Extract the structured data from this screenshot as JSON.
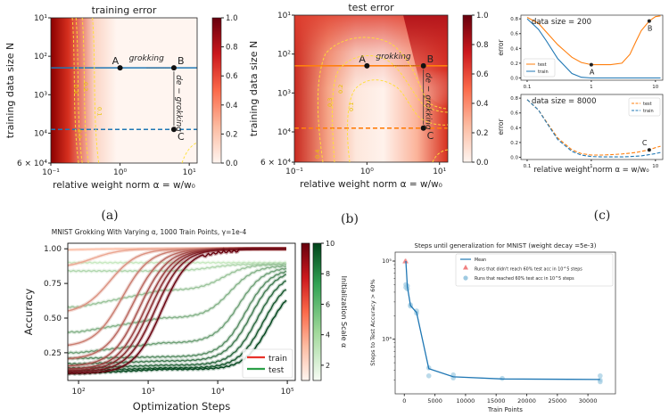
{
  "figure": {
    "panel_labels": [
      "(a)",
      "(b)",
      "(c)"
    ]
  },
  "chart_data": [
    {
      "id": "a",
      "type": "heatmap",
      "title": "training error",
      "xlabel": "relative weight norm α = w/w₀",
      "ylabel": "training data size N",
      "xscale": "log",
      "yscale": "log",
      "xlim": [
        0.1,
        13
      ],
      "ylim": [
        60000,
        10
      ],
      "xticks": [
        {
          "v": 0.1,
          "label": "10⁻¹"
        },
        {
          "v": 1,
          "label": "10⁰"
        },
        {
          "v": 10,
          "label": "10¹"
        }
      ],
      "yticks": [
        {
          "v": 10,
          "label": "10¹"
        },
        {
          "v": 100,
          "label": "10²"
        },
        {
          "v": 1000,
          "label": "10³"
        },
        {
          "v": 10000,
          "label": "10⁴"
        },
        {
          "v": 60000,
          "label": "6 × 10⁴"
        }
      ],
      "colorbar": {
        "min": 0.0,
        "max": 1.0,
        "ticks": [
          "0.0",
          "0.2",
          "0.4",
          "0.6",
          "0.8",
          "1.0"
        ],
        "cmap": "Reds"
      },
      "contour_labels": [
        "0.4",
        "0.3",
        "0.2",
        "0.1",
        "0.1"
      ],
      "lines": [
        {
          "N": 200,
          "style": "solid",
          "color": "#1f77b4"
        },
        {
          "N": 8000,
          "style": "dashed",
          "color": "#1f77b4"
        }
      ],
      "points": [
        {
          "label": "A",
          "alpha": 1.0,
          "N": 200
        },
        {
          "label": "B",
          "alpha": 6,
          "N": 200
        },
        {
          "label": "C",
          "alpha": 6,
          "N": 8000
        }
      ],
      "annotations": [
        "grokking",
        "de − grokking"
      ]
    },
    {
      "id": "b",
      "type": "heatmap",
      "title": "test error",
      "xlabel": "relative weight norm α = w/w₀",
      "ylabel": "training data size N",
      "xscale": "log",
      "yscale": "log",
      "xlim": [
        0.1,
        13
      ],
      "ylim": [
        60000,
        10
      ],
      "xticks": [
        {
          "v": 0.1,
          "label": "10⁻¹"
        },
        {
          "v": 1,
          "label": "10⁰"
        },
        {
          "v": 10,
          "label": "10¹"
        }
      ],
      "yticks": [
        {
          "v": 10,
          "label": "10¹"
        },
        {
          "v": 100,
          "label": "10²"
        },
        {
          "v": 1000,
          "label": "10³"
        },
        {
          "v": 10000,
          "label": "10⁴"
        },
        {
          "v": 60000,
          "label": "6 × 10⁴"
        }
      ],
      "colorbar": {
        "min": 0.0,
        "max": 1.0,
        "ticks": [
          "0.0",
          "0.2",
          "0.4",
          "0.6",
          "0.8",
          "1.0"
        ],
        "cmap": "Reds"
      },
      "contour_labels": [
        "0.4",
        "0.3",
        "0.2",
        "0.1"
      ],
      "lines": [
        {
          "N": 200,
          "style": "solid",
          "color": "#ff7f0e"
        },
        {
          "N": 8000,
          "style": "dashed",
          "color": "#ff7f0e"
        }
      ],
      "points": [
        {
          "label": "A",
          "alpha": 1.0,
          "N": 200
        },
        {
          "label": "B",
          "alpha": 6,
          "N": 200
        },
        {
          "label": "C",
          "alpha": 6,
          "N": 8000
        }
      ],
      "annotations": [
        "grokking",
        "de − grokking"
      ]
    },
    {
      "id": "c-top",
      "type": "line",
      "title": "data size = 200",
      "xlabel": "",
      "ylabel": "error",
      "xscale": "log",
      "xlim": [
        0.08,
        13
      ],
      "ylim": [
        -0.03,
        0.85
      ],
      "xticks": [
        "0.1",
        "1",
        "10"
      ],
      "yticks": [
        "0.0",
        "0.2",
        "0.4",
        "0.6",
        "0.8"
      ],
      "legend": "lower-left",
      "x": [
        0.1,
        0.15,
        0.2,
        0.3,
        0.5,
        0.7,
        1,
        1.5,
        2,
        3,
        4,
        5,
        6,
        8,
        10,
        12
      ],
      "series": [
        {
          "name": "test",
          "color": "#ff7f0e",
          "style": "solid",
          "values": [
            0.82,
            0.74,
            0.62,
            0.45,
            0.28,
            0.21,
            0.18,
            0.18,
            0.18,
            0.2,
            0.32,
            0.5,
            0.64,
            0.77,
            0.83,
            0.84
          ]
        },
        {
          "name": "train",
          "color": "#1f77b4",
          "style": "solid",
          "values": [
            0.8,
            0.66,
            0.5,
            0.26,
            0.06,
            0.01,
            0.0,
            0.0,
            0.0,
            0.0,
            0.0,
            0.0,
            0.0,
            0.0,
            0.0,
            0.0
          ]
        }
      ],
      "points": [
        {
          "label": "A",
          "x": 1,
          "y": 0.18
        },
        {
          "label": "B",
          "x": 8,
          "y": 0.77
        }
      ]
    },
    {
      "id": "c-bottom",
      "type": "line",
      "title": "data size = 8000",
      "xlabel": "relative weight norm α = w/w₀",
      "ylabel": "error",
      "xscale": "log",
      "xlim": [
        0.08,
        13
      ],
      "ylim": [
        -0.03,
        0.85
      ],
      "xticks": [
        "0.1",
        "1",
        "10"
      ],
      "yticks": [
        "0.0",
        "0.2",
        "0.4",
        "0.6",
        "0.8"
      ],
      "legend": "top-right",
      "x": [
        0.1,
        0.15,
        0.2,
        0.3,
        0.5,
        0.7,
        1,
        1.5,
        2,
        3,
        4,
        5,
        6,
        8,
        10,
        12
      ],
      "series": [
        {
          "name": "test",
          "color": "#ff7f0e",
          "style": "dashed",
          "values": [
            0.78,
            0.64,
            0.48,
            0.26,
            0.1,
            0.05,
            0.03,
            0.03,
            0.035,
            0.045,
            0.055,
            0.065,
            0.08,
            0.1,
            0.13,
            0.15
          ]
        },
        {
          "name": "train",
          "color": "#1f77b4",
          "style": "dashed",
          "values": [
            0.78,
            0.64,
            0.47,
            0.24,
            0.08,
            0.03,
            0.01,
            0.005,
            0.005,
            0.005,
            0.01,
            0.015,
            0.02,
            0.035,
            0.05,
            0.065
          ]
        }
      ],
      "points": [
        {
          "label": "C",
          "x": 8,
          "y": 0.1
        }
      ]
    },
    {
      "id": "d",
      "type": "line",
      "title": "MNIST Grokking With Varying α, 1000 Train Points, γ=1e-4",
      "xlabel": "Optimization Steps",
      "ylabel": "Accuracy",
      "xscale": "log",
      "xlim": [
        70,
        130000
      ],
      "ylim": [
        0.05,
        1.04
      ],
      "xticks": [
        {
          "v": 100,
          "label": "10²"
        },
        {
          "v": 1000,
          "label": "10³"
        },
        {
          "v": 10000,
          "label": "10⁴"
        },
        {
          "v": 100000,
          "label": "10⁵"
        }
      ],
      "yticks": [
        "0.25",
        "0.50",
        "0.75",
        "1.00"
      ],
      "legend": "lower-right",
      "legend_entries": [
        {
          "name": "train",
          "color": "#e8322a"
        },
        {
          "name": "test",
          "color": "#2ca048"
        }
      ],
      "colorbar_label": "Initialization Scale α",
      "colorbar_ticks": [
        "2",
        "4",
        "6",
        "8",
        "10"
      ],
      "alpha_values": [
        1,
        2,
        3,
        4,
        5,
        6,
        7,
        8,
        9,
        10
      ],
      "train_series": [
        {
          "alpha": 1,
          "start": 0.99,
          "mid_step": 110
        },
        {
          "alpha": 2,
          "start": 0.86,
          "mid_step": 160
        },
        {
          "alpha": 3,
          "start": 0.53,
          "mid_step": 280
        },
        {
          "alpha": 4,
          "start": 0.29,
          "mid_step": 420
        },
        {
          "alpha": 5,
          "start": 0.2,
          "mid_step": 600
        },
        {
          "alpha": 6,
          "start": 0.15,
          "mid_step": 750
        },
        {
          "alpha": 7,
          "start": 0.13,
          "mid_step": 900
        },
        {
          "alpha": 8,
          "start": 0.12,
          "mid_step": 1050
        },
        {
          "alpha": 9,
          "start": 0.11,
          "mid_step": 1250
        },
        {
          "alpha": 10,
          "start": 0.1,
          "mid_step": 1550
        }
      ],
      "test_series": [
        {
          "alpha": 1,
          "start": 0.9,
          "plateau": 0.9,
          "final": 0.9,
          "mid_step": 1000
        },
        {
          "alpha": 2,
          "start": 0.84,
          "plateau": 0.84,
          "final": 0.89,
          "mid_step": 8000
        },
        {
          "alpha": 3,
          "start": 0.58,
          "plateau": 0.7,
          "final": 0.89,
          "mid_step": 12000
        },
        {
          "alpha": 4,
          "start": 0.4,
          "plateau": 0.5,
          "final": 0.88,
          "mid_step": 15000
        },
        {
          "alpha": 5,
          "start": 0.25,
          "plateau": 0.32,
          "final": 0.87,
          "mid_step": 20000
        },
        {
          "alpha": 6,
          "start": 0.21,
          "plateau": 0.22,
          "final": 0.86,
          "mid_step": 25000
        },
        {
          "alpha": 7,
          "start": 0.17,
          "plateau": 0.19,
          "final": 0.85,
          "mid_step": 30000
        },
        {
          "alpha": 8,
          "start": 0.14,
          "plateau": 0.16,
          "final": 0.83,
          "mid_step": 37000
        },
        {
          "alpha": 9,
          "start": 0.12,
          "plateau": 0.14,
          "final": 0.8,
          "mid_step": 45000
        },
        {
          "alpha": 10,
          "start": 0.1,
          "plateau": 0.13,
          "final": 0.76,
          "mid_step": 55000
        }
      ]
    },
    {
      "id": "e",
      "type": "line",
      "title": "Steps until generalization for MNIST (weight decay =5e-3)",
      "xlabel": "Train Points",
      "ylabel": "Steps to Test Accuracy > 60%",
      "yscale": "log",
      "xlim": [
        -1500,
        34500
      ],
      "ylim": [
        2000,
        130000
      ],
      "xticks": [
        "0",
        "5000",
        "10000",
        "15000",
        "20000",
        "25000",
        "30000"
      ],
      "xtick_values": [
        0,
        5000,
        10000,
        15000,
        20000,
        25000,
        30000
      ],
      "yticks": [
        {
          "v": 10000,
          "label": "10⁴"
        },
        {
          "v": 100000,
          "label": "10⁵"
        }
      ],
      "legend": "top-right",
      "legend_entries": [
        "Mean",
        "Runs that didn't reach 60% test acc in 10^5 steps",
        "Runs that reached 60% test acc in 10^5 steps"
      ],
      "mean": {
        "x": [
          250,
          500,
          1000,
          2000,
          4000,
          8000,
          16000,
          32000
        ],
        "y": [
          100000,
          47000,
          27000,
          22000,
          4200,
          3300,
          3100,
          3050
        ]
      },
      "failed_runs": [
        {
          "x": 125,
          "y": 100000
        },
        {
          "x": 250,
          "y": 100000
        }
      ],
      "reached_runs": [
        {
          "x": 250,
          "y": 50000
        },
        {
          "x": 250,
          "y": 46000
        },
        {
          "x": 500,
          "y": 48000
        },
        {
          "x": 500,
          "y": 44000
        },
        {
          "x": 1000,
          "y": 27500
        },
        {
          "x": 1000,
          "y": 26500
        },
        {
          "x": 2000,
          "y": 23000
        },
        {
          "x": 2000,
          "y": 21500
        },
        {
          "x": 4000,
          "y": 4300
        },
        {
          "x": 4000,
          "y": 3400
        },
        {
          "x": 8000,
          "y": 3500
        },
        {
          "x": 8000,
          "y": 3200
        },
        {
          "x": 16000,
          "y": 3150
        },
        {
          "x": 32000,
          "y": 3400
        },
        {
          "x": 32000,
          "y": 3000
        },
        {
          "x": 32000,
          "y": 2850
        }
      ]
    }
  ]
}
